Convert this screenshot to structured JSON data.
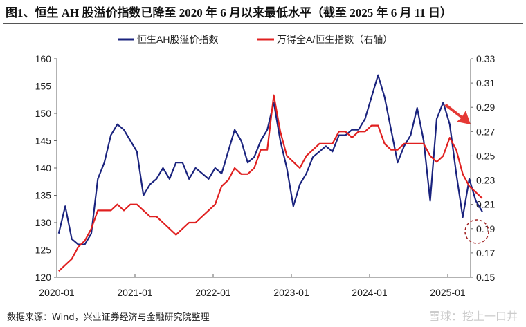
{
  "title": "图1、恒生 AH 股溢价指数已降至 2020 年 6 月以来最低水平（截至 2025 年 6 月 11 日）",
  "source": "数据来源：Wind，兴业证券经济与金融研究院整理",
  "watermark": "雪球：挖上一口井",
  "chart_data": {
    "type": "line",
    "title": "图1、恒生 AH 股溢价指数已降至 2020 年 6 月以来最低水平（截至 2025 年 6 月 11 日）",
    "x_ticks": [
      "2020-01",
      "2021-01",
      "2022-01",
      "2023-01",
      "2024-01",
      "2025-01"
    ],
    "y_left": {
      "range": [
        120,
        160
      ],
      "ticks": [
        "120",
        "125",
        "130",
        "135",
        "140",
        "145",
        "150",
        "155",
        "160"
      ]
    },
    "y_right": {
      "range": [
        0.15,
        0.33
      ],
      "ticks": [
        "0.15",
        "0.17",
        "0.19",
        "0.21",
        "0.23",
        "0.25",
        "0.27",
        "0.29",
        "0.31",
        "0.33"
      ]
    },
    "grid": false,
    "legend_position": "top-center",
    "annotations": [
      "red downward arrow near end",
      "dashed red circle around latest value"
    ],
    "x": [
      "2020-01",
      "2020-02",
      "2020-03",
      "2020-04",
      "2020-05",
      "2020-06",
      "2020-07",
      "2020-08",
      "2020-09",
      "2020-10",
      "2020-11",
      "2020-12",
      "2021-01",
      "2021-02",
      "2021-03",
      "2021-04",
      "2021-05",
      "2021-06",
      "2021-07",
      "2021-08",
      "2021-09",
      "2021-10",
      "2021-11",
      "2021-12",
      "2022-01",
      "2022-02",
      "2022-03",
      "2022-04",
      "2022-05",
      "2022-06",
      "2022-07",
      "2022-08",
      "2022-09",
      "2022-10",
      "2022-11",
      "2022-12",
      "2023-01",
      "2023-02",
      "2023-03",
      "2023-04",
      "2023-05",
      "2023-06",
      "2023-07",
      "2023-08",
      "2023-09",
      "2023-10",
      "2023-11",
      "2023-12",
      "2024-01",
      "2024-02",
      "2024-03",
      "2024-04",
      "2024-05",
      "2024-06",
      "2024-07",
      "2024-08",
      "2024-09",
      "2024-10",
      "2024-11",
      "2024-12",
      "2025-01",
      "2025-02",
      "2025-03",
      "2025-04",
      "2025-05",
      "2025-06"
    ],
    "series": [
      {
        "name": "恒生AH股溢价指数",
        "axis": "left",
        "color": "#1a237e",
        "values": [
          128,
          133,
          127,
          126,
          126,
          128,
          138,
          141,
          146,
          148,
          147,
          145,
          143,
          135,
          137,
          138,
          140,
          138,
          141,
          141,
          138,
          140,
          139,
          138,
          140,
          139,
          143,
          147,
          145,
          141,
          142,
          145,
          147,
          152,
          145,
          140,
          133,
          137,
          139,
          142,
          143,
          144,
          143,
          146,
          146,
          147,
          147,
          149,
          153,
          157,
          153,
          147,
          141,
          144,
          146,
          151,
          145,
          134,
          149,
          152,
          148,
          139,
          131,
          138,
          134,
          132
        ]
      },
      {
        "name": "万得全A/恒生指数（右轴）",
        "axis": "right",
        "color": "#e02020",
        "values": [
          0.155,
          0.16,
          0.165,
          0.175,
          0.18,
          0.19,
          0.205,
          0.205,
          0.205,
          0.21,
          0.205,
          0.21,
          0.21,
          0.205,
          0.2,
          0.2,
          0.195,
          0.19,
          0.185,
          0.19,
          0.195,
          0.195,
          0.2,
          0.205,
          0.21,
          0.225,
          0.23,
          0.24,
          0.235,
          0.235,
          0.24,
          0.255,
          0.255,
          0.3,
          0.27,
          0.25,
          0.245,
          0.24,
          0.25,
          0.255,
          0.26,
          0.26,
          0.26,
          0.27,
          0.27,
          0.265,
          0.27,
          0.27,
          0.275,
          0.275,
          0.26,
          0.255,
          0.255,
          0.26,
          0.26,
          0.26,
          0.26,
          0.25,
          0.245,
          0.25,
          0.265,
          0.255,
          0.235,
          0.225,
          0.22,
          0.215
        ]
      }
    ]
  }
}
